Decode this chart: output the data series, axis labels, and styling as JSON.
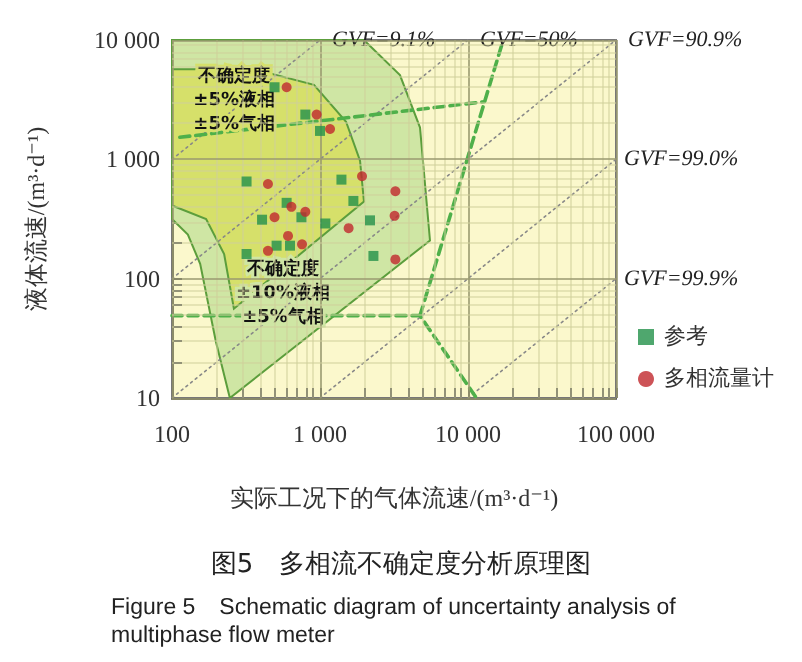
{
  "chart_data": {
    "type": "scatter",
    "title": "图5　多相流不确定度分析原理图",
    "subtitle": "Figure 5　Schematic diagram of uncertainty analysis of multiphase flow meter",
    "xlabel": "实际工况下的气体流速/(m³·d⁻¹)",
    "ylabel": "液体流速/(m³·d⁻¹)",
    "log": "xy",
    "grid": true,
    "legend": "right",
    "xlim": [
      100,
      100000
    ],
    "xticks": [
      100,
      {
        "value": 200,
        "label": null
      },
      {
        "value": 300,
        "label": null
      },
      {
        "value": 400,
        "label": null
      },
      {
        "value": 500,
        "label": null
      },
      {
        "value": 600,
        "label": null
      },
      {
        "value": 700,
        "label": null
      },
      {
        "value": 800,
        "label": null
      },
      {
        "value": 900,
        "label": null
      },
      {
        "value": 1000,
        "label": "1 000"
      },
      {
        "value": 2000,
        "label": null
      },
      {
        "value": 3000,
        "label": null
      },
      {
        "value": 4000,
        "label": null
      },
      {
        "value": 5000,
        "label": null
      },
      {
        "value": 6000,
        "label": null
      },
      {
        "value": 7000,
        "label": null
      },
      {
        "value": 8000,
        "label": null
      },
      {
        "value": 9000,
        "label": null
      },
      {
        "value": 10000,
        "label": "10 000"
      },
      {
        "value": 20000,
        "label": null
      },
      {
        "value": 30000,
        "label": null
      },
      {
        "value": 40000,
        "label": null
      },
      {
        "value": 50000,
        "label": null
      },
      {
        "value": 60000,
        "label": null
      },
      {
        "value": 70000,
        "label": null
      },
      {
        "value": 80000,
        "label": null
      },
      {
        "value": 90000,
        "label": null
      },
      {
        "value": 100000,
        "label": "100 000"
      }
    ],
    "ylim": [
      10,
      10000
    ],
    "yticks": [
      10,
      {
        "value": 20,
        "label": null
      },
      {
        "value": 30,
        "label": null
      },
      {
        "value": 40,
        "label": null
      },
      {
        "value": 50,
        "label": null
      },
      {
        "value": 60,
        "label": null
      },
      {
        "value": 70,
        "label": null
      },
      {
        "value": 80,
        "label": null
      },
      {
        "value": 90,
        "label": null
      },
      100,
      {
        "value": 200,
        "label": null
      },
      {
        "value": 300,
        "label": null
      },
      {
        "value": 400,
        "label": null
      },
      {
        "value": 500,
        "label": null
      },
      {
        "value": 600,
        "label": null
      },
      {
        "value": 700,
        "label": null
      },
      {
        "value": 800,
        "label": null
      },
      {
        "value": 900,
        "label": null
      },
      {
        "value": 1000,
        "label": "1 000"
      },
      {
        "value": 2000,
        "label": null
      },
      {
        "value": 3000,
        "label": null
      },
      {
        "value": 4000,
        "label": null
      },
      {
        "value": 5000,
        "label": null
      },
      {
        "value": 6000,
        "label": null
      },
      {
        "value": 7000,
        "label": null
      },
      {
        "value": 8000,
        "label": null
      },
      {
        "value": 9000,
        "label": null
      },
      {
        "value": 10000,
        "label": "10 000"
      }
    ],
    "annotations": [
      "不确定度\n±5%液相\n±5%气相",
      "不确定度\n±10%液相\n±5%气相"
    ],
    "series": [
      {
        "type": "area",
        "color": "#cfe6a4",
        "x": [
          100,
          1980,
          3470,
          4740,
          5535,
          246,
          198,
          155,
          128,
          100
        ],
        "values": [
          10000,
          10000,
          5080,
          1845,
          209,
          10,
          29.6,
          133,
          234,
          316
        ]
      },
      {
        "type": "area",
        "color": "#d6e06a",
        "x": [
          100,
          358,
          910,
          1500,
          1864,
          1982,
          262,
          225,
          170,
          100
        ],
        "values": [
          5690,
          5690,
          4215,
          2065,
          975,
          443,
          56,
          161,
          316,
          410
        ]
      },
      {
        "type": "line",
        "name": "GVF=9.1%",
        "color": "#888888",
        "line_style": "dotted",
        "x": [
          100,
          1000
        ],
        "values": [
          1000,
          10000
        ]
      },
      {
        "type": "line",
        "name": "GVF=50%",
        "color": "#888888",
        "line_style": "dotted",
        "x": [
          100,
          10000
        ],
        "values": [
          100,
          10000
        ]
      },
      {
        "type": "line",
        "name": "GVF=90.9%",
        "color": "#888888",
        "line_style": "dotted",
        "x": [
          100,
          100000
        ],
        "values": [
          10,
          10000
        ]
      },
      {
        "type": "line",
        "name": "GVF=99.0%",
        "color": "#888888",
        "line_style": "dotted",
        "x": [
          1000,
          100000
        ],
        "values": [
          10,
          1000
        ]
      },
      {
        "type": "line",
        "name": "GVF=99.9%",
        "color": "#888888",
        "line_style": "dotted",
        "x": [
          10000,
          100000
        ],
        "values": [
          10,
          100
        ]
      },
      {
        "type": "line",
        "color": "#4fb04a",
        "line_style": "dashed",
        "x": [
          113,
          12900
        ],
        "values": [
          1530,
          3040
        ]
      },
      {
        "type": "line",
        "color": "#4fb04a",
        "line_style": "dashed",
        "x": [
          100,
          4740,
          11400
        ],
        "values": [
          49,
          49,
          10
        ]
      },
      {
        "type": "line",
        "color": "#4fb04a",
        "line_style": "dashed",
        "x": [
          4740,
          17300
        ],
        "values": [
          49,
          10000
        ]
      },
      {
        "name": "参考",
        "color": "#23914a",
        "marker": "square",
        "x": [
          493,
          796,
          1000,
          319,
          1396,
          1681,
          595,
          749,
          406,
          1087,
          2177,
          509,
          627,
          319,
          2296
        ],
        "values": [
          4018,
          2372,
          1730,
          652,
          676,
          448,
          432,
          327,
          312,
          290,
          308,
          189,
          189,
          161,
          155
        ]
      },
      {
        "name": "多相流量计",
        "color": "#c0282d",
        "marker": "circle",
        "x": [
          595,
          949,
          1169,
          445,
          1923,
          3231,
          641,
          796,
          493,
          1561,
          3192,
          608,
          756,
          445,
          3231
        ],
        "values": [
          4018,
          2372,
          1795,
          621,
          721,
          540,
          400,
          363,
          327,
          265,
          336,
          228,
          194,
          171,
          145
        ]
      }
    ]
  }
}
